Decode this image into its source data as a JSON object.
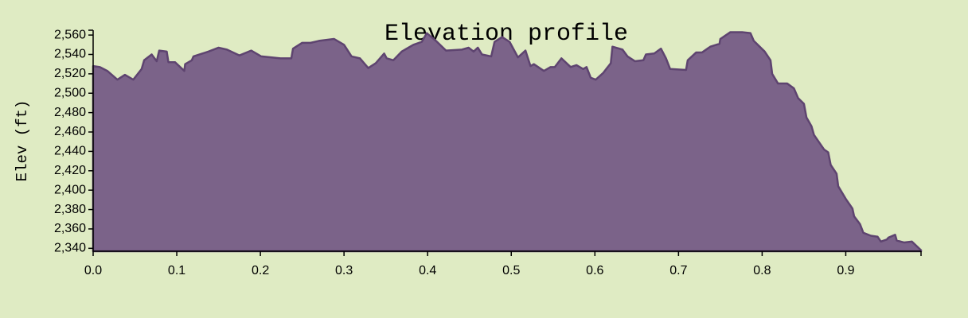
{
  "chart_data": {
    "type": "area",
    "title": "Elevation profile",
    "y_label": "Elev (ft)",
    "fill_color": "#7b6389",
    "line_color": "#5e4470",
    "xlim": [
      0,
      0.99
    ],
    "ylim": [
      2337,
      2565
    ],
    "xticks": [
      {
        "value": 0,
        "label": "0.0"
      },
      0.1,
      0.2,
      0.3,
      0.4,
      0.5,
      0.6,
      0.7,
      0.8,
      0.9
    ],
    "yticks": [
      {
        "value": 2340,
        "label": "2,340"
      },
      {
        "value": 2360,
        "label": "2,360"
      },
      {
        "value": 2380,
        "label": "2,380"
      },
      {
        "value": 2400,
        "label": "2,400"
      },
      {
        "value": 2420,
        "label": "2,420"
      },
      {
        "value": 2440,
        "label": "2,440"
      },
      {
        "value": 2460,
        "label": "2,460"
      },
      {
        "value": 2480,
        "label": "2,480"
      },
      {
        "value": 2500,
        "label": "2,500"
      },
      {
        "value": 2520,
        "label": "2,520"
      },
      {
        "value": 2540,
        "label": "2,540"
      },
      {
        "value": 2560,
        "label": "2,560"
      }
    ],
    "x": [
      0,
      0.008,
      0.017,
      0.029,
      0.038,
      0.048,
      0.058,
      0.061,
      0.07,
      0.076,
      0.079,
      0.088,
      0.09,
      0.098,
      0.109,
      0.11,
      0.118,
      0.12,
      0.138,
      0.15,
      0.16,
      0.175,
      0.189,
      0.201,
      0.224,
      0.237,
      0.239,
      0.25,
      0.26,
      0.27,
      0.288,
      0.3,
      0.309,
      0.319,
      0.329,
      0.338,
      0.348,
      0.351,
      0.359,
      0.369,
      0.383,
      0.393,
      0.399,
      0.41,
      0.422,
      0.441,
      0.449,
      0.455,
      0.46,
      0.465,
      0.476,
      0.48,
      0.489,
      0.498,
      0.508,
      0.517,
      0.523,
      0.527,
      0.539,
      0.547,
      0.552,
      0.56,
      0.571,
      0.578,
      0.586,
      0.59,
      0.595,
      0.601,
      0.61,
      0.619,
      0.621,
      0.633,
      0.639,
      0.648,
      0.658,
      0.661,
      0.671,
      0.679,
      0.685,
      0.69,
      0.709,
      0.711,
      0.721,
      0.728,
      0.738,
      0.749,
      0.75,
      0.762,
      0.776,
      0.786,
      0.79,
      0.803,
      0.81,
      0.812,
      0.819,
      0.83,
      0.838,
      0.843,
      0.85,
      0.853,
      0.859,
      0.862,
      0.874,
      0.879,
      0.882,
      0.889,
      0.891,
      0.9,
      0.908,
      0.91,
      0.917,
      0.921,
      0.93,
      0.938,
      0.942,
      0.949,
      0.951,
      0.959,
      0.961,
      0.97,
      0.979,
      0.99
    ],
    "values": [
      2528,
      2527,
      2523,
      2514,
      2519,
      2514,
      2525,
      2534,
      2540,
      2533,
      2544,
      2543,
      2532,
      2532,
      2523,
      2530,
      2534,
      2538,
      2543,
      2547,
      2545,
      2539,
      2544,
      2538,
      2536,
      2536,
      2546,
      2552,
      2552,
      2554,
      2556,
      2550,
      2538,
      2536,
      2526,
      2531,
      2541,
      2536,
      2534,
      2543,
      2550,
      2553,
      2562,
      2554,
      2544,
      2545,
      2547,
      2543,
      2547,
      2540,
      2538,
      2553,
      2558,
      2553,
      2537,
      2544,
      2528,
      2530,
      2523,
      2527,
      2527,
      2536,
      2527,
      2529,
      2525,
      2527,
      2516,
      2514,
      2521,
      2531,
      2548,
      2545,
      2538,
      2533,
      2534,
      2540,
      2541,
      2546,
      2536,
      2525,
      2524,
      2534,
      2542,
      2542,
      2548,
      2551,
      2556,
      2563,
      2563,
      2562,
      2554,
      2543,
      2534,
      2520,
      2510,
      2510,
      2505,
      2495,
      2489,
      2475,
      2466,
      2457,
      2442,
      2439,
      2426,
      2417,
      2404,
      2391,
      2381,
      2373,
      2365,
      2356,
      2353,
      2352,
      2347,
      2349,
      2351,
      2354,
      2348,
      2346,
      2347,
      2338
    ]
  }
}
